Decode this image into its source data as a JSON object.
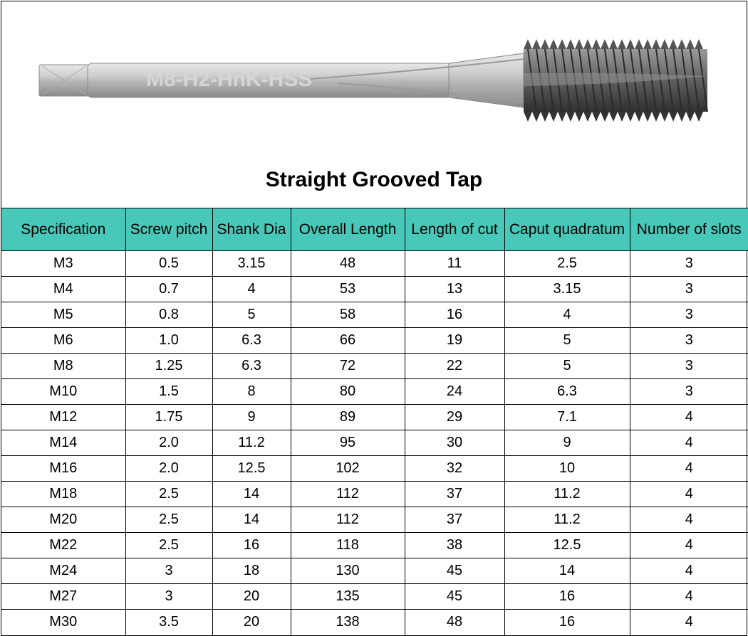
{
  "title": "Straight Grooved Tap",
  "product_engraving": "M8-H2-HnK-HSS",
  "illustration": {
    "shank_color": "#bfbfbf",
    "shank_highlight": "#e8e8e8",
    "shank_shadow": "#8a8a8a",
    "thread_color": "#606060",
    "thread_dark": "#2f2f2f",
    "engraving_color": "#d6d6d6"
  },
  "table": {
    "header_bg": "#47c8b8",
    "border_color": "#000000",
    "text_color": "#000000",
    "header_fontsize": 21,
    "cell_fontsize": 20,
    "columns": [
      "Specification",
      "Screw pitch",
      "Shank Dia",
      "Overall Length",
      "Length of cut",
      "Caput quadratum",
      "Number of slots"
    ],
    "rows": [
      [
        "M3",
        "0.5",
        "3.15",
        "48",
        "11",
        "2.5",
        "3"
      ],
      [
        "M4",
        "0.7",
        "4",
        "53",
        "13",
        "3.15",
        "3"
      ],
      [
        "M5",
        "0.8",
        "5",
        "58",
        "16",
        "4",
        "3"
      ],
      [
        "M6",
        "1.0",
        "6.3",
        "66",
        "19",
        "5",
        "3"
      ],
      [
        "M8",
        "1.25",
        "6.3",
        "72",
        "22",
        "5",
        "3"
      ],
      [
        "M10",
        "1.5",
        "8",
        "80",
        "24",
        "6.3",
        "3"
      ],
      [
        "M12",
        "1.75",
        "9",
        "89",
        "29",
        "7.1",
        "4"
      ],
      [
        "M14",
        "2.0",
        "11.2",
        "95",
        "30",
        "9",
        "4"
      ],
      [
        "M16",
        "2.0",
        "12.5",
        "102",
        "32",
        "10",
        "4"
      ],
      [
        "M18",
        "2.5",
        "14",
        "112",
        "37",
        "11.2",
        "4"
      ],
      [
        "M20",
        "2.5",
        "14",
        "112",
        "37",
        "11.2",
        "4"
      ],
      [
        "M22",
        "2.5",
        "16",
        "118",
        "38",
        "12.5",
        "4"
      ],
      [
        "M24",
        "3",
        "18",
        "130",
        "45",
        "14",
        "4"
      ],
      [
        "M27",
        "3",
        "20",
        "135",
        "45",
        "16",
        "4"
      ],
      [
        "M30",
        "3.5",
        "20",
        "138",
        "48",
        "16",
        "4"
      ]
    ]
  }
}
